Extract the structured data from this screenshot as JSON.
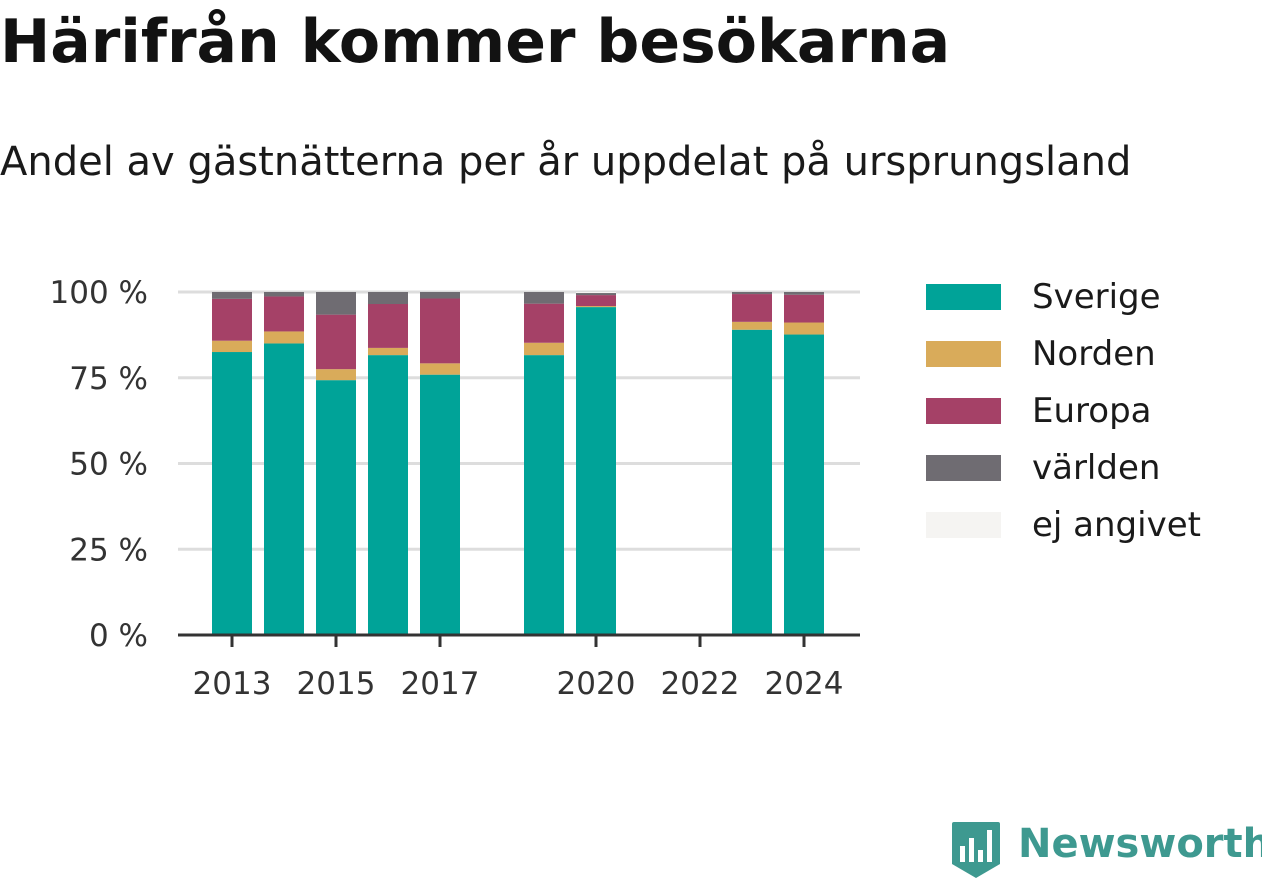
{
  "title": "Härifrån kommer besökarna",
  "subtitle": "Andel av gästnätterna per år uppdelat på ursprungsland",
  "brand": {
    "name": "Newsworthy",
    "icon": "newsworthy-logo-icon",
    "color": "#3e9990"
  },
  "chart_data": {
    "type": "bar",
    "stacked": true,
    "x": [
      2013,
      2014,
      2015,
      2016,
      2017,
      2018,
      2019,
      2020,
      2021,
      2022,
      2023,
      2024
    ],
    "x_tick_labels": [
      "2013",
      "2015",
      "2017",
      "2020",
      "2022",
      "2024"
    ],
    "y_tick_labels": [
      "0 %",
      "25 %",
      "50 %",
      "75 %",
      "100 %"
    ],
    "ylim": [
      0,
      100
    ],
    "grid": true,
    "legend_position": "right",
    "series": [
      {
        "name": "Sverige",
        "color": "#00a398",
        "values": [
          82.5,
          85,
          74.3,
          81.6,
          75.9,
          null,
          81.6,
          95.6,
          null,
          null,
          89,
          87.6
        ]
      },
      {
        "name": "Norden",
        "color": "#d9ab5a",
        "values": [
          3.3,
          3.5,
          3.2,
          2.1,
          3.3,
          null,
          3.6,
          0.3,
          null,
          null,
          2.3,
          3.5
        ]
      },
      {
        "name": "Europa",
        "color": "#a54167",
        "values": [
          12.2,
          10.2,
          15.9,
          12.8,
          18.9,
          null,
          11.4,
          3.2,
          null,
          null,
          8.1,
          8.1
        ]
      },
      {
        "name": "världen",
        "color": "#6f6c72",
        "values": [
          2,
          1.3,
          6.6,
          3.5,
          1.9,
          null,
          3.4,
          0.6,
          null,
          null,
          0.6,
          0.8
        ]
      },
      {
        "name": "ej angivet",
        "color": "#f5f4f2",
        "values": [
          0,
          0,
          0,
          0,
          0,
          null,
          0,
          0.3,
          null,
          null,
          0,
          0
        ]
      }
    ]
  }
}
